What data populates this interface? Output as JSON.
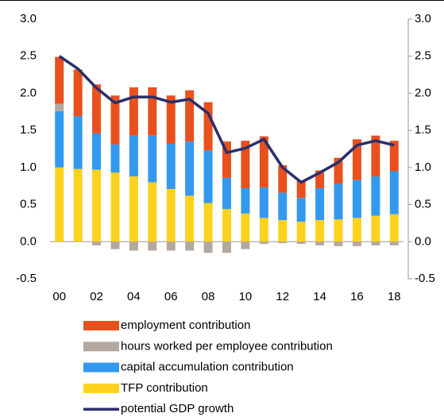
{
  "chart_data": {
    "type": "bar",
    "categories": [
      "00",
      null,
      "02",
      null,
      "04",
      null,
      "06",
      null,
      "08",
      null,
      "10",
      null,
      "12",
      null,
      "14",
      null,
      "16",
      null,
      "18"
    ],
    "series": [
      {
        "name": "TFP contribution",
        "color": "#ffd21f",
        "values": [
          1.0,
          0.98,
          0.97,
          0.93,
          0.88,
          0.8,
          0.71,
          0.62,
          0.52,
          0.44,
          0.38,
          0.32,
          0.29,
          0.27,
          0.29,
          0.3,
          0.32,
          0.35,
          0.37
        ]
      },
      {
        "name": "capital accumulation contribution",
        "color": "#3399ee",
        "values": [
          0.76,
          0.71,
          0.49,
          0.38,
          0.55,
          0.63,
          0.61,
          0.73,
          0.71,
          0.42,
          0.34,
          0.41,
          0.37,
          0.32,
          0.43,
          0.48,
          0.51,
          0.53,
          0.58
        ]
      },
      {
        "name": "hours worked per employee contribution",
        "color": "#b4a8a0",
        "values": [
          0.1,
          0.0,
          -0.05,
          -0.1,
          -0.12,
          -0.12,
          -0.12,
          -0.12,
          -0.15,
          -0.15,
          -0.1,
          -0.03,
          -0.02,
          -0.03,
          -0.05,
          -0.06,
          -0.06,
          -0.05,
          -0.05
        ]
      },
      {
        "name": "employment contribution",
        "color": "#e8501e",
        "values": [
          0.63,
          0.63,
          0.66,
          0.66,
          0.65,
          0.65,
          0.65,
          0.69,
          0.65,
          0.49,
          0.64,
          0.69,
          0.37,
          0.23,
          0.24,
          0.35,
          0.55,
          0.55,
          0.41
        ]
      },
      {
        "name": "potential GDP growth",
        "color": "#2a2f6b",
        "type": "line",
        "values": [
          2.5,
          2.33,
          2.07,
          1.87,
          1.95,
          1.95,
          1.88,
          1.92,
          1.73,
          1.2,
          1.26,
          1.38,
          1.0,
          0.8,
          0.93,
          1.07,
          1.3,
          1.36,
          1.3
        ]
      }
    ],
    "legend_order": [
      3,
      2,
      1,
      0,
      4
    ],
    "ylim": [
      -0.5,
      3.0
    ],
    "yticks": [
      -0.5,
      {
        "value": 0,
        "label": "0.0"
      },
      0.5,
      {
        "value": 1,
        "label": "1.0"
      },
      1.5,
      {
        "value": 2,
        "label": "2.0"
      },
      2.5,
      {
        "value": 3,
        "label": "3.0"
      }
    ],
    "y2lim": [
      -0.5,
      3.0
    ],
    "y2ticks": [
      -0.5,
      {
        "value": 0,
        "label": "0.0"
      },
      0.5,
      {
        "value": 1,
        "label": "1.0"
      },
      1.5,
      {
        "value": 2,
        "label": "2.0"
      },
      2.5,
      {
        "value": 3,
        "label": "3.0"
      }
    ]
  }
}
